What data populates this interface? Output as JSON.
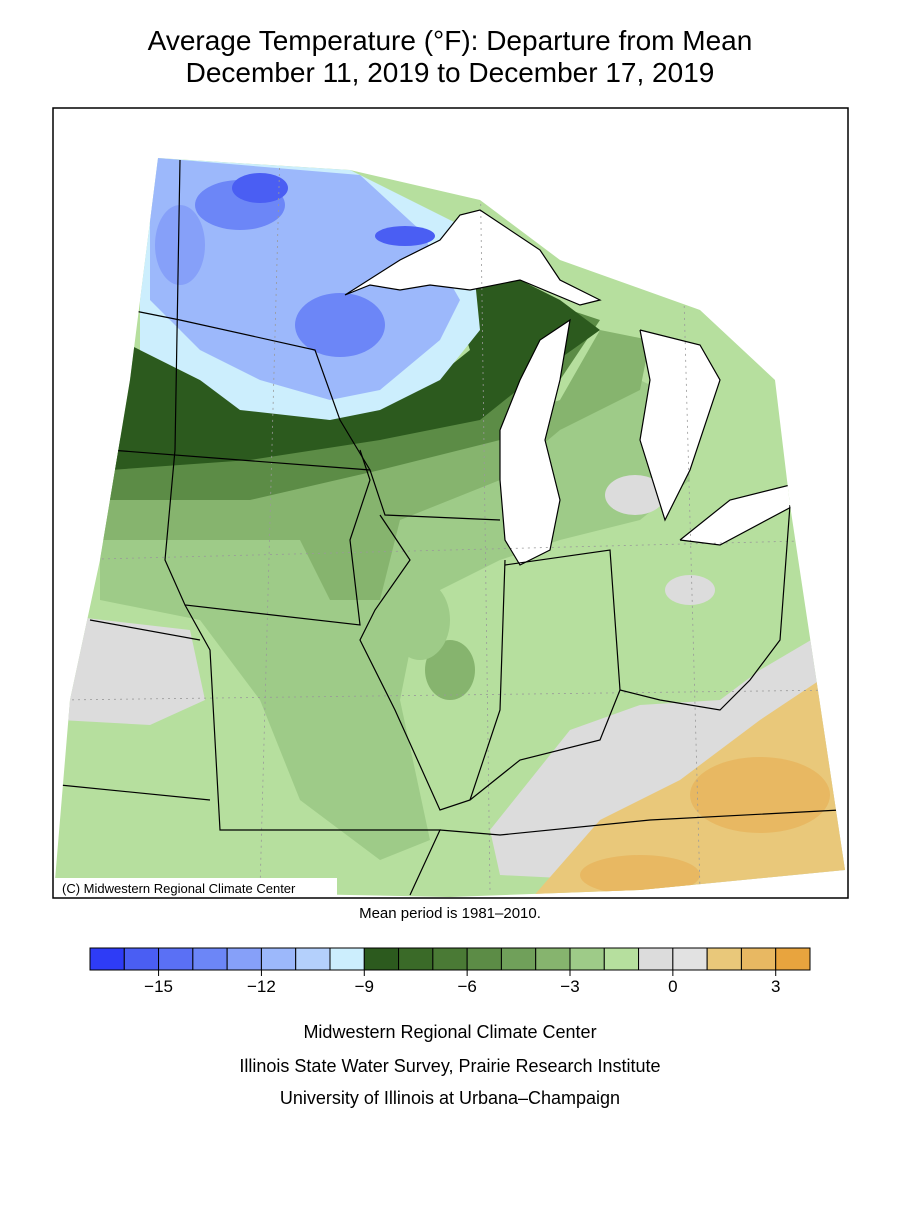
{
  "map": {
    "title": "Average Temperature (°F): Departure from Mean",
    "subtitle": "December 11, 2019 to December 17, 2019",
    "copyright": "(C) Midwestern Regional Climate Center",
    "note": "Mean period is 1981–2010.",
    "legend": {
      "range": [
        -17,
        4
      ],
      "colors": [
        "#2e3cf6",
        "#4a5ef3",
        "#5a70f5",
        "#6c86f7",
        "#86a0f9",
        "#9cb8fb",
        "#b4d0fc",
        "#cceefd",
        "#2c5a1e",
        "#3a6a28",
        "#4a7a35",
        "#5c8c46",
        "#70a05a",
        "#86b46e",
        "#9ecb88",
        "#b6df9e",
        "#dcdcdc",
        "#e2e2e2",
        "#e9c87a",
        "#e8b862",
        "#e8a43e"
      ],
      "ticks": [
        {
          "value": -15,
          "label": "−15"
        },
        {
          "value": -12,
          "label": "−12"
        },
        {
          "value": -9,
          "label": "−9"
        },
        {
          "value": -6,
          "label": "−6"
        },
        {
          "value": -3,
          "label": "−3"
        },
        0,
        3
      ]
    },
    "footer": [
      "Midwestern Regional Climate Center",
      "Illinois State Water Survey, Prairie Research Institute",
      "University of Illinois at Urbana–Champaign"
    ]
  }
}
